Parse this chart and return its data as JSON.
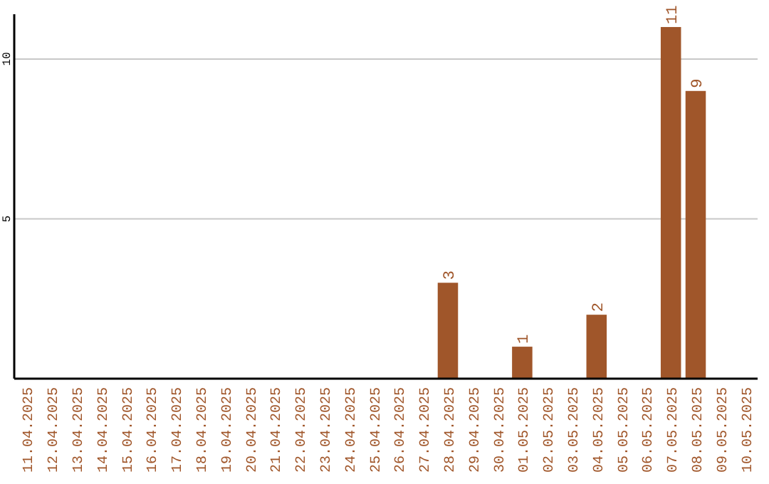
{
  "chart_data": {
    "type": "bar",
    "categories": [
      "11.04.2025",
      "12.04.2025",
      "13.04.2025",
      "14.04.2025",
      "15.04.2025",
      "16.04.2025",
      "17.04.2025",
      "18.04.2025",
      "19.04.2025",
      "20.04.2025",
      "21.04.2025",
      "22.04.2025",
      "23.04.2025",
      "24.04.2025",
      "25.04.2025",
      "26.04.2025",
      "27.04.2025",
      "28.04.2025",
      "29.04.2025",
      "30.04.2025",
      "01.05.2025",
      "02.05.2025",
      "03.05.2025",
      "04.05.2025",
      "05.05.2025",
      "06.05.2025",
      "07.05.2025",
      "08.05.2025",
      "09.05.2025",
      "10.05.2025"
    ],
    "values": [
      0,
      0,
      0,
      0,
      0,
      0,
      0,
      0,
      0,
      0,
      0,
      0,
      0,
      0,
      0,
      0,
      0,
      3,
      0,
      0,
      1,
      0,
      0,
      2,
      0,
      0,
      11,
      9,
      0,
      0
    ],
    "value_labels": [
      null,
      null,
      null,
      null,
      null,
      null,
      null,
      null,
      null,
      null,
      null,
      null,
      null,
      null,
      null,
      null,
      null,
      "3",
      null,
      null,
      "1",
      null,
      null,
      "2",
      null,
      null,
      "11",
      "9",
      null,
      null
    ],
    "color": "#a0562a",
    "ylim": [
      0,
      11.4
    ],
    "yticks": [
      5,
      10
    ],
    "grid": "y"
  }
}
